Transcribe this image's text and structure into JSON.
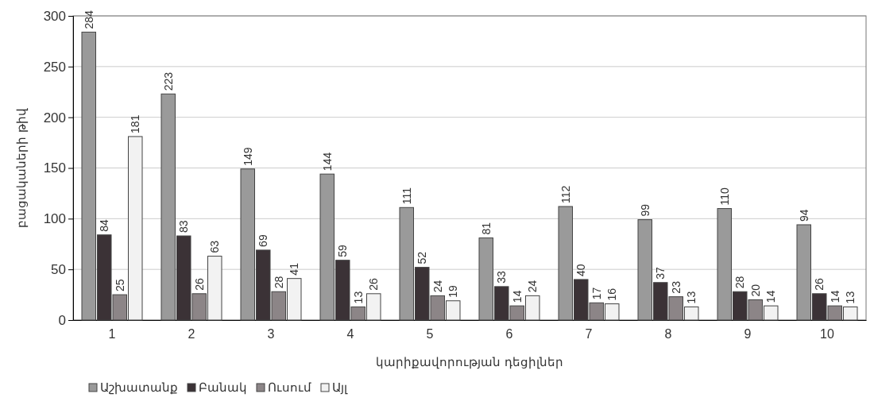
{
  "chart_data": {
    "type": "bar",
    "xlabel": "կարիքավորության դեցիլներ",
    "ylabel": "բացակաների թիվ",
    "categories": [
      "1",
      "2",
      "3",
      "4",
      "5",
      "6",
      "7",
      "8",
      "9",
      "10"
    ],
    "series": [
      {
        "name": "Աշխատանք",
        "color": "#9a9a9a",
        "values": [
          284,
          223,
          149,
          144,
          111,
          81,
          112,
          99,
          110,
          94
        ]
      },
      {
        "name": "Բանակ",
        "color": "#3b3236",
        "values": [
          84,
          83,
          69,
          59,
          52,
          33,
          40,
          37,
          28,
          26
        ]
      },
      {
        "name": "Ուսում",
        "color": "#8c8587",
        "values": [
          25,
          26,
          28,
          13,
          24,
          14,
          17,
          23,
          20,
          14
        ]
      },
      {
        "name": "Այլ",
        "color": "#f2f2f2",
        "values": [
          181,
          63,
          41,
          26,
          19,
          24,
          16,
          13,
          14,
          13
        ]
      }
    ],
    "ylim": [
      0,
      300
    ],
    "yticks": [
      0,
      50,
      100,
      150,
      200,
      250,
      300
    ],
    "grid": "y",
    "legend": "bottom left",
    "data_labels": true
  }
}
